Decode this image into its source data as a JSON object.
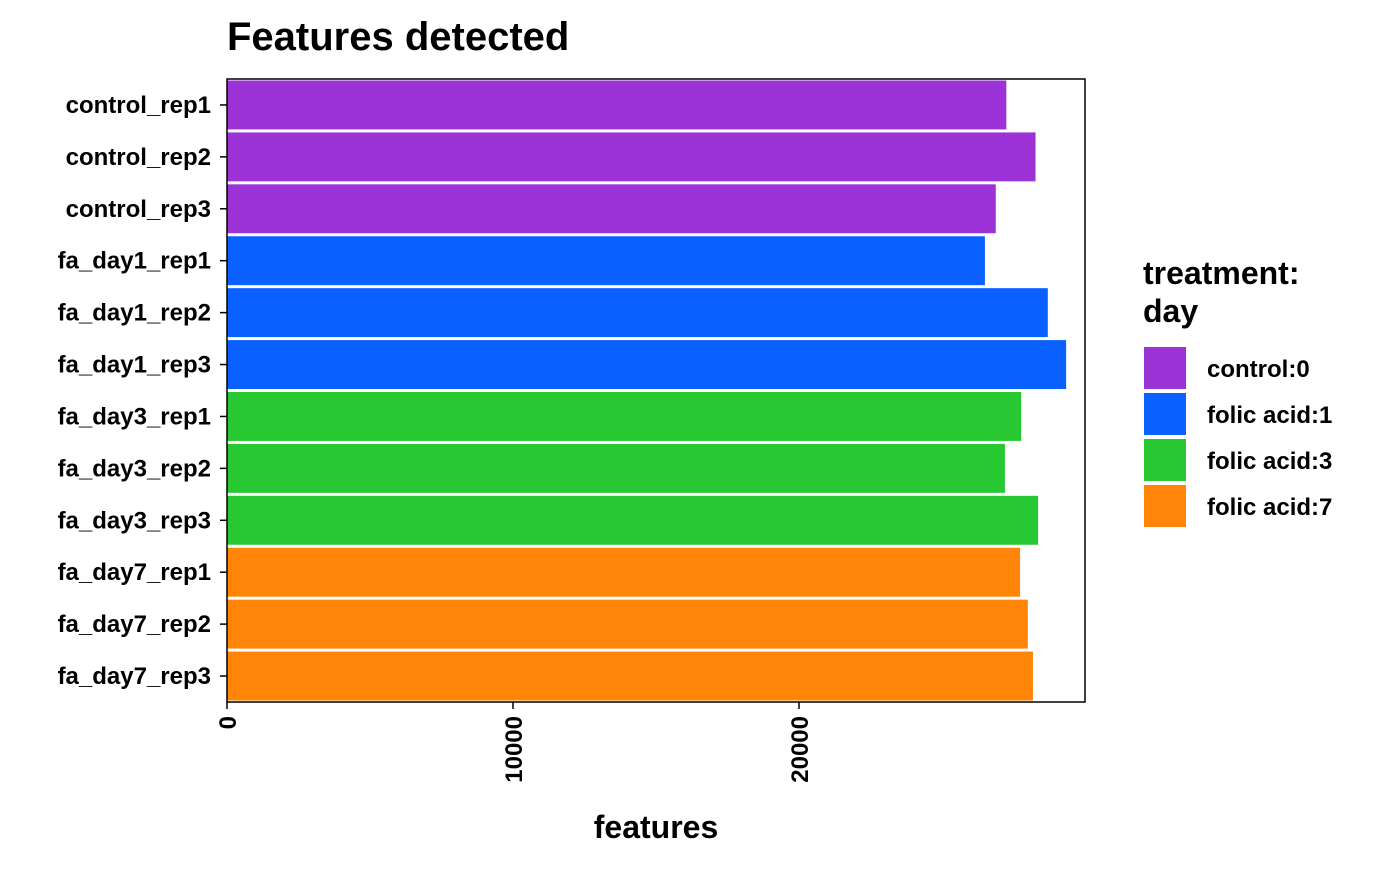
{
  "chart_data": {
    "type": "bar",
    "orientation": "horizontal",
    "title": "Features detected",
    "xlabel": "features",
    "ylabel": "",
    "xlim": [
      0,
      30000
    ],
    "x_ticks": [
      0,
      10000,
      20000
    ],
    "x_tick_labels": [
      "0",
      "10000",
      "20000"
    ],
    "grid": false,
    "categories": [
      "control_rep1",
      "control_rep2",
      "control_rep3",
      "fa_day1_rep1",
      "fa_day1_rep2",
      "fa_day1_rep3",
      "fa_day3_rep1",
      "fa_day3_rep2",
      "fa_day3_rep3",
      "fa_day7_rep1",
      "fa_day7_rep2",
      "fa_day7_rep3"
    ],
    "values": [
      27250,
      28270,
      26880,
      26500,
      28700,
      29340,
      27770,
      27200,
      28360,
      27730,
      28000,
      28180
    ],
    "groups": [
      "control:0",
      "control:0",
      "control:0",
      "folic acid:1",
      "folic acid:1",
      "folic acid:1",
      "folic acid:3",
      "folic acid:3",
      "folic acid:3",
      "folic acid:7",
      "folic acid:7",
      "folic acid:7"
    ],
    "legend": {
      "title_lines": [
        "treatment:",
        "day"
      ],
      "position": "right",
      "entries": [
        {
          "label": "control:0",
          "color": "#9b33d6"
        },
        {
          "label": "folic acid:1",
          "color": "#0a61ff"
        },
        {
          "label": "folic acid:3",
          "color": "#28c832"
        },
        {
          "label": "folic acid:7",
          "color": "#ff8408"
        }
      ]
    }
  }
}
